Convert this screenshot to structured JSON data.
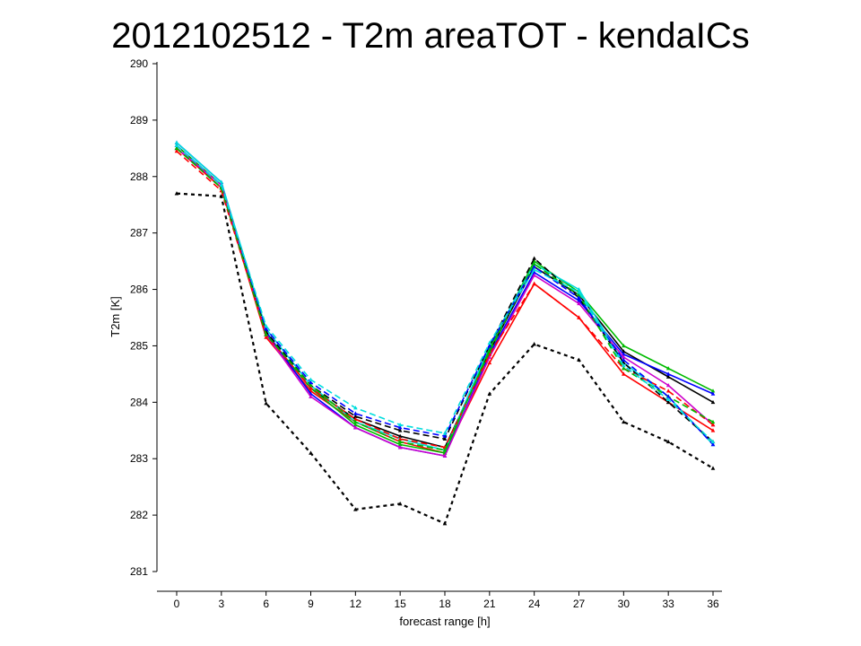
{
  "slide": {
    "title": "2012102512 - T2m areaTOT - kendaICs"
  },
  "chart_data": {
    "type": "line",
    "title": "",
    "xlabel": "forecast range [h]",
    "ylabel": "T2m [K]",
    "x": [
      0,
      3,
      6,
      9,
      12,
      15,
      18,
      21,
      24,
      27,
      30,
      33,
      36
    ],
    "x_tick_labels": [
      "0",
      "3",
      "6",
      "9",
      "12",
      "15",
      "18",
      "21",
      "24",
      "27",
      "30",
      "33",
      "36"
    ],
    "y_tick_labels": [
      "281",
      "282",
      "283",
      "284",
      "285",
      "286",
      "287",
      "288",
      "289",
      "290"
    ],
    "xlim": [
      0,
      36
    ],
    "ylim": [
      281,
      290
    ],
    "grid": false,
    "series": [
      {
        "color": "#000000",
        "dash": "solid",
        "values": [
          288.55,
          287.85,
          285.2,
          284.25,
          283.7,
          283.4,
          283.2,
          284.9,
          286.4,
          285.9,
          284.9,
          284.45,
          284.0
        ]
      },
      {
        "color": "#ff0000",
        "dash": "solid",
        "values": [
          288.5,
          287.8,
          285.15,
          284.2,
          283.65,
          283.3,
          283.1,
          284.7,
          286.1,
          285.5,
          284.5,
          284.0,
          283.5
        ]
      },
      {
        "color": "#00bb00",
        "dash": "solid",
        "values": [
          288.55,
          287.85,
          285.2,
          284.25,
          283.6,
          283.25,
          283.1,
          284.95,
          286.5,
          285.95,
          285.0,
          284.6,
          284.2
        ]
      },
      {
        "color": "#0000ff",
        "dash": "solid",
        "values": [
          288.6,
          287.9,
          285.25,
          284.15,
          283.55,
          283.2,
          283.05,
          284.85,
          286.3,
          285.8,
          284.85,
          284.5,
          284.15
        ]
      },
      {
        "color": "#00dddd",
        "dash": "solid",
        "values": [
          288.6,
          287.9,
          285.3,
          284.3,
          283.65,
          283.35,
          283.15,
          285.0,
          286.45,
          286.0,
          284.7,
          284.1,
          283.25
        ]
      },
      {
        "color": "#cc00cc",
        "dash": "solid",
        "values": [
          288.5,
          287.85,
          285.2,
          284.1,
          283.55,
          283.2,
          283.05,
          284.8,
          286.25,
          285.75,
          284.8,
          284.3,
          283.6
        ]
      },
      {
        "color": "#000000",
        "dash": "dashed",
        "values": [
          288.5,
          287.8,
          285.25,
          284.3,
          283.75,
          283.5,
          283.35,
          285.0,
          286.55,
          285.85,
          284.7,
          284.0,
          283.3
        ]
      },
      {
        "color": "#ff0000",
        "dash": "dashed",
        "values": [
          288.45,
          287.75,
          285.2,
          284.25,
          283.7,
          283.35,
          283.2,
          284.85,
          286.1,
          285.5,
          284.6,
          284.2,
          283.6
        ]
      },
      {
        "color": "#00bb00",
        "dash": "dashed",
        "values": [
          288.5,
          287.8,
          285.2,
          284.3,
          283.65,
          283.3,
          283.15,
          284.9,
          286.45,
          285.9,
          284.6,
          284.1,
          283.65
        ]
      },
      {
        "color": "#0000ff",
        "dash": "dashed",
        "values": [
          288.55,
          287.85,
          285.3,
          284.35,
          283.8,
          283.55,
          283.4,
          285.0,
          286.4,
          285.85,
          284.75,
          284.1,
          283.25
        ]
      },
      {
        "color": "#00dddd",
        "dash": "dashed",
        "values": [
          288.55,
          287.85,
          285.35,
          284.4,
          283.9,
          283.6,
          283.45,
          285.05,
          286.35,
          285.95,
          284.65,
          284.05,
          283.3
        ]
      },
      {
        "color": "#000000",
        "dash": "dotted",
        "values": [
          287.7,
          287.65,
          283.98,
          283.1,
          282.1,
          282.2,
          281.85,
          284.15,
          285.03,
          284.75,
          283.65,
          283.3,
          282.83
        ]
      }
    ]
  }
}
